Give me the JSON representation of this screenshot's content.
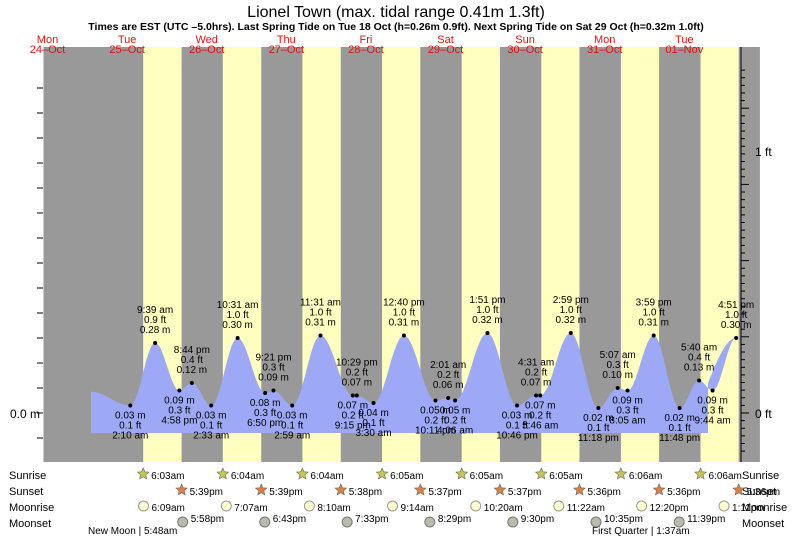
{
  "header": {
    "title": "Lionel Town (max. tidal range 0.41m 1.3ft)",
    "subtitle": "Times are EST (UTC –5.0hrs). Last Spring Tide on Tue 18 Oct (h=0.26m 0.9ft). Next Spring Tide on Sat 29 Oct (h=0.32m 1.0ft)"
  },
  "colors": {
    "night": "#999999",
    "day": "#ffffc0",
    "tide": "#9da9f6",
    "date_label": "#e01010",
    "text": "#000000"
  },
  "chart_data": {
    "type": "area",
    "title": "Lionel Town (max. tidal range 0.41m 1.3ft)",
    "ylabel_left": "0.0 m",
    "ylabel_right": [
      "0 ft",
      "1 ft"
    ],
    "days": [
      {
        "dow": "Mon",
        "date": "24–Oct"
      },
      {
        "dow": "Tue",
        "date": "25–Oct"
      },
      {
        "dow": "Wed",
        "date": "26–Oct"
      },
      {
        "dow": "Thu",
        "date": "27–Oct"
      },
      {
        "dow": "Fri",
        "date": "28–Oct"
      },
      {
        "dow": "Sat",
        "date": "29–Oct"
      },
      {
        "dow": "Sun",
        "date": "30–Oct"
      },
      {
        "dow": "Mon",
        "date": "31–Oct"
      },
      {
        "dow": "Tue",
        "date": "01–Nov"
      }
    ],
    "tides": [
      {
        "time": "2:10 am",
        "m": "0.03 m",
        "ft": "0.1 ft",
        "h": 0.03,
        "type": "low",
        "day": 1,
        "hour": 2.17
      },
      {
        "time": "4:58 pm",
        "m": "0.09 m",
        "ft": "0.3 ft",
        "h": 0.09,
        "type": "low",
        "day": 1,
        "hour": 16.97
      },
      {
        "time": "8:44 pm",
        "m": "0.12 m",
        "ft": "0.4 ft",
        "h": 0.12,
        "type": "high",
        "day": 1,
        "hour": 20.73
      },
      {
        "time": "9:39 am",
        "m": "0.28 m",
        "ft": "0.9 ft",
        "h": 0.28,
        "type": "high",
        "day": 1,
        "hour": 9.65
      },
      {
        "time": "2:33 am",
        "m": "0.03 m",
        "ft": "0.1 ft",
        "h": 0.03,
        "type": "low",
        "day": 2,
        "hour": 2.55
      },
      {
        "time": "10:31 am",
        "m": "0.30 m",
        "ft": "1.0 ft",
        "h": 0.3,
        "type": "high",
        "day": 2,
        "hour": 10.52
      },
      {
        "time": "6:50 pm",
        "m": "0.08 m",
        "ft": "0.3 ft",
        "h": 0.08,
        "type": "low",
        "day": 2,
        "hour": 18.83
      },
      {
        "time": "9:21 pm",
        "m": "0.09 m",
        "ft": "0.3 ft",
        "h": 0.09,
        "type": "high",
        "day": 2,
        "hour": 21.35
      },
      {
        "time": "2:59 am",
        "m": "0.03 m",
        "ft": "0.1 ft",
        "h": 0.03,
        "type": "low",
        "day": 3,
        "hour": 2.98
      },
      {
        "time": "11:31 am",
        "m": "0.31 m",
        "ft": "1.0 ft",
        "h": 0.31,
        "type": "high",
        "day": 3,
        "hour": 11.52
      },
      {
        "time": "9:15 pm",
        "m": "0.07 m",
        "ft": "0.2 ft",
        "h": 0.07,
        "type": "low",
        "day": 3,
        "hour": 21.25
      },
      {
        "time": "10:29 pm",
        "m": "0.07 m",
        "ft": "0.2 ft",
        "h": 0.07,
        "type": "high",
        "day": 3,
        "hour": 22.48
      },
      {
        "time": "3:30 am",
        "m": "0.04 m",
        "ft": "0.1 ft",
        "h": 0.04,
        "type": "low",
        "day": 4,
        "hour": 3.5
      },
      {
        "time": "12:40 pm",
        "m": "0.31 m",
        "ft": "1.0 ft",
        "h": 0.31,
        "type": "high",
        "day": 4,
        "hour": 12.67
      },
      {
        "time": "10:11 pm",
        "m": "0.05 m",
        "ft": "0.2 ft",
        "h": 0.05,
        "type": "low",
        "day": 4,
        "hour": 22.18
      },
      {
        "time": "2:01 am",
        "m": "0.06 m",
        "ft": "0.2 ft",
        "h": 0.06,
        "type": "high",
        "day": 5,
        "hour": 2.02
      },
      {
        "time": "4:06 am",
        "m": "0.05 m",
        "ft": "0.2 ft",
        "h": 0.05,
        "type": "low",
        "day": 5,
        "hour": 4.1
      },
      {
        "time": "1:51 pm",
        "m": "0.32 m",
        "ft": "1.0 ft",
        "h": 0.32,
        "type": "high",
        "day": 5,
        "hour": 13.85
      },
      {
        "time": "10:46 pm",
        "m": "0.03 m",
        "ft": "0.1 ft",
        "h": 0.03,
        "type": "low",
        "day": 5,
        "hour": 22.77
      },
      {
        "time": "4:31 am",
        "m": "0.07 m",
        "ft": "0.2 ft",
        "h": 0.07,
        "type": "high",
        "day": 6,
        "hour": 4.52
      },
      {
        "time": "5:46 am",
        "m": "0.07 m",
        "ft": "0.2 ft",
        "h": 0.07,
        "type": "low",
        "day": 6,
        "hour": 5.77
      },
      {
        "time": "2:59 pm",
        "m": "0.32 m",
        "ft": "1.0 ft",
        "h": 0.32,
        "type": "high",
        "day": 6,
        "hour": 14.98
      },
      {
        "time": "11:18 pm",
        "m": "0.02 m",
        "ft": "0.1 ft",
        "h": 0.02,
        "type": "low",
        "day": 6,
        "hour": 23.3
      },
      {
        "time": "5:07 am",
        "m": "0.10 m",
        "ft": "0.3 ft",
        "h": 0.1,
        "type": "high",
        "day": 7,
        "hour": 5.12
      },
      {
        "time": "8:05 am",
        "m": "0.09 m",
        "ft": "0.3 ft",
        "h": 0.09,
        "type": "low",
        "day": 7,
        "hour": 8.08
      },
      {
        "time": "3:59 pm",
        "m": "0.31 m",
        "ft": "1.0 ft",
        "h": 0.31,
        "type": "high",
        "day": 7,
        "hour": 15.98
      },
      {
        "time": "11:48 pm",
        "m": "0.02 m",
        "ft": "0.1 ft",
        "h": 0.02,
        "type": "low",
        "day": 7,
        "hour": 23.8
      },
      {
        "time": "5:40 am",
        "m": "0.13 m",
        "ft": "0.4 ft",
        "h": 0.13,
        "type": "high",
        "day": 8,
        "hour": 5.67
      },
      {
        "time": "9:44 am",
        "m": "0.09 m",
        "ft": "0.3 ft",
        "h": 0.09,
        "type": "low",
        "day": 8,
        "hour": 9.73
      },
      {
        "time": "4:51 pm",
        "m": "0.30 m",
        "ft": "1.0 ft",
        "h": 0.3,
        "type": "high",
        "day": 8,
        "hour": 16.85
      }
    ],
    "sunrise": [
      "6:03am",
      "6:04am",
      "6:04am",
      "6:05am",
      "6:05am",
      "6:05am",
      "6:06am",
      "6:06am"
    ],
    "sunset": [
      "5:39pm",
      "5:39pm",
      "5:38pm",
      "5:37pm",
      "5:37pm",
      "5:36pm",
      "5:36pm",
      "5:36pm"
    ],
    "moonrise": [
      "6:09am",
      "7:07am",
      "8:10am",
      "9:14am",
      "10:20am",
      "11:22am",
      "12:20pm",
      "1:11pm"
    ],
    "moonset": [
      "5:58pm",
      "6:43pm",
      "7:33pm",
      "8:29pm",
      "9:30pm",
      "10:35pm",
      "11:39pm"
    ],
    "row_labels": {
      "sunrise": "Sunrise",
      "sunset": "Sunset",
      "moonrise": "Moonrise",
      "moonset": "Moonset"
    },
    "moon_phases": [
      {
        "text": "New Moon | 5:48am",
        "day": 1
      },
      {
        "text": "First Quarter | 1:37am",
        "day": 7
      }
    ]
  }
}
